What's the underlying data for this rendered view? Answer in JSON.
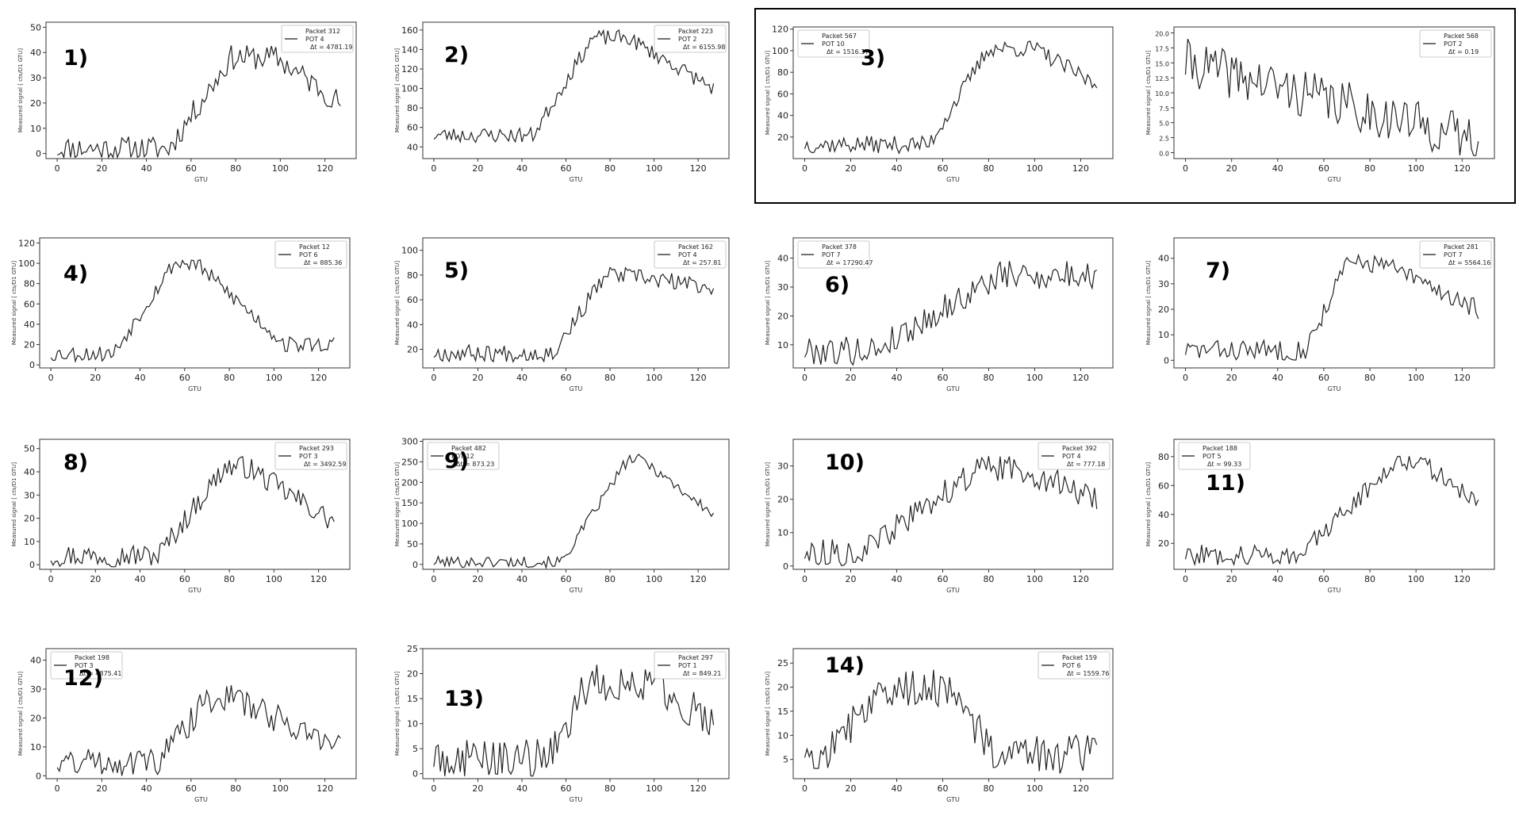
{
  "figure": {
    "y_axis_label": "Measured signal [ cts/D1 GTU]",
    "x_axis_label": "GTU",
    "line_color": "#222222",
    "frame_color": "#333333",
    "highlight_box_color": "#000000"
  },
  "chart_data": [
    {
      "panel": "1)",
      "type": "line",
      "legend": [
        "Packet 312",
        "POT 4",
        "Δt = 4781.19"
      ],
      "xlabel": "GTU",
      "ylabel": "Measured signal [ cts/D1 GTU]",
      "xlim": [
        -5,
        134
      ],
      "ylim": [
        -2,
        52
      ],
      "xticks": [
        0,
        20,
        40,
        60,
        80,
        100,
        120
      ],
      "yticks": [
        0,
        10,
        20,
        30,
        40,
        50
      ],
      "shape": {
        "base": 2,
        "peak": 38,
        "rise_start": 50,
        "rise_end": 78,
        "fall_start": 98,
        "fall_end": 127,
        "end": 20,
        "noise": 5,
        "seed": 11
      }
    },
    {
      "panel": "2)",
      "type": "line",
      "legend": [
        "Packet 223",
        "POT 2",
        "Δt = 6155.98"
      ],
      "xlabel": "GTU",
      "ylabel": "Measured signal [ cts/D1 GTU]",
      "xlim": [
        -5,
        134
      ],
      "ylim": [
        28,
        168
      ],
      "xticks": [
        0,
        20,
        40,
        60,
        80,
        100,
        120
      ],
      "yticks": [
        40,
        60,
        80,
        100,
        120,
        140,
        160
      ],
      "shape": {
        "base": 52,
        "peak": 152,
        "rise_start": 45,
        "rise_end": 72,
        "fall_start": 88,
        "fall_end": 127,
        "end": 100,
        "noise": 8,
        "seed": 23
      }
    },
    {
      "panel": "3)",
      "type": "line",
      "legend": [
        "Packet 567",
        "POT 10",
        "Δt = 1516.37"
      ],
      "xlabel": "GTU",
      "ylabel": "Measured signal [ cts/D1 GTU]",
      "xlim": [
        -5,
        134
      ],
      "ylim": [
        0,
        122
      ],
      "xticks": [
        0,
        20,
        40,
        60,
        80,
        100,
        120
      ],
      "yticks": [
        20,
        40,
        60,
        80,
        100,
        120
      ],
      "shape": {
        "base": 13,
        "peak": 102,
        "rise_start": 54,
        "rise_end": 80,
        "fall_start": 100,
        "fall_end": 127,
        "end": 68,
        "noise": 8,
        "seed": 37
      }
    },
    {
      "panel": "",
      "type": "line",
      "legend": [
        "Packet 568",
        "POT 2",
        "Δt = 0.19"
      ],
      "xlabel": "GTU",
      "ylabel": "Measured signal [ cts/D1 GTU]",
      "xlim": [
        -5,
        134
      ],
      "ylim": [
        -1,
        21
      ],
      "xticks": [
        0,
        20,
        40,
        60,
        80,
        100,
        120
      ],
      "yticks": [
        0.0,
        2.5,
        5.0,
        7.5,
        10.0,
        12.5,
        15.0,
        17.5,
        20.0
      ],
      "shape": {
        "base": 15,
        "peak": 15,
        "rise_start": 0,
        "rise_end": 1,
        "fall_start": 1,
        "fall_end": 127,
        "end": 2,
        "noise": 4,
        "seed": 41
      }
    },
    {
      "panel": "4)",
      "type": "line",
      "legend": [
        "Packet 12",
        "POT 6",
        "Δt = 885.36"
      ],
      "xlabel": "GTU",
      "ylabel": "Measured signal [ cts/D1 GTU]",
      "xlim": [
        -5,
        134
      ],
      "ylim": [
        -3,
        125
      ],
      "xticks": [
        0,
        20,
        40,
        60,
        80,
        100,
        120
      ],
      "yticks": [
        0,
        20,
        40,
        60,
        80,
        100,
        120
      ],
      "shape": {
        "base": 11,
        "peak": 100,
        "rise_start": 28,
        "rise_end": 55,
        "fall_start": 65,
        "fall_end": 105,
        "end": 20,
        "noise": 8,
        "seed": 53
      }
    },
    {
      "panel": "5)",
      "type": "line",
      "legend": [
        "Packet 162",
        "POT 4",
        "Δt = 257.81"
      ],
      "xlabel": "GTU",
      "ylabel": "Measured signal [ cts/D1 GTU]",
      "xlim": [
        -5,
        134
      ],
      "ylim": [
        5,
        110
      ],
      "xticks": [
        0,
        20,
        40,
        60,
        80,
        100,
        120
      ],
      "yticks": [
        20,
        40,
        60,
        80,
        100
      ],
      "shape": {
        "base": 17,
        "peak": 80,
        "rise_start": 54,
        "rise_end": 78,
        "fall_start": 85,
        "fall_end": 127,
        "end": 70,
        "noise": 7,
        "seed": 67
      }
    },
    {
      "panel": "6)",
      "type": "line",
      "legend": [
        "Packet 378",
        "POT 7",
        "Δt = 17290.47"
      ],
      "xlabel": "GTU",
      "ylabel": "Measured signal [ cts/D1 GTU]",
      "xlim": [
        -5,
        134
      ],
      "ylim": [
        2,
        47
      ],
      "xticks": [
        0,
        20,
        40,
        60,
        80,
        100,
        120
      ],
      "yticks": [
        10,
        20,
        30,
        40
      ],
      "shape": {
        "base": 8,
        "peak": 34,
        "rise_start": 30,
        "rise_end": 85,
        "fall_start": 125,
        "fall_end": 127,
        "end": 32,
        "noise": 5,
        "seed": 79
      }
    },
    {
      "panel": "7)",
      "type": "line",
      "legend": [
        "Packet 281",
        "POT 7",
        "Δt = 5564.16"
      ],
      "xlabel": "GTU",
      "ylabel": "Measured signal [ cts/D1 GTU]",
      "xlim": [
        -5,
        134
      ],
      "ylim": [
        -3,
        48
      ],
      "xticks": [
        0,
        20,
        40,
        60,
        80,
        100,
        120
      ],
      "yticks": [
        0,
        10,
        20,
        30,
        40
      ],
      "shape": {
        "base": 4,
        "peak": 38,
        "rise_start": 52,
        "rise_end": 70,
        "fall_start": 85,
        "fall_end": 127,
        "end": 20,
        "noise": 4,
        "seed": 83
      }
    },
    {
      "panel": "8)",
      "type": "line",
      "legend": [
        "Packet 293",
        "POT 3",
        "Δt = 3492.59"
      ],
      "xlabel": "GTU",
      "ylabel": "Measured signal [ cts/D1 GTU]",
      "xlim": [
        -5,
        134
      ],
      "ylim": [
        -2,
        54
      ],
      "xticks": [
        0,
        20,
        40,
        60,
        80,
        100,
        120
      ],
      "yticks": [
        0,
        10,
        20,
        30,
        40,
        50
      ],
      "shape": {
        "base": 4,
        "peak": 42,
        "rise_start": 48,
        "rise_end": 78,
        "fall_start": 88,
        "fall_end": 127,
        "end": 18,
        "noise": 5,
        "seed": 97
      }
    },
    {
      "panel": "9)",
      "type": "line",
      "legend": [
        "Packet 482",
        "POT 12",
        "Δt = 873.23"
      ],
      "xlabel": "GTU",
      "ylabel": "Measured signal [ cts/D1 GTU]",
      "xlim": [
        -5,
        134
      ],
      "ylim": [
        -12,
        305
      ],
      "xticks": [
        0,
        20,
        40,
        60,
        80,
        100,
        120
      ],
      "yticks": [
        0,
        50,
        100,
        150,
        200,
        250,
        300
      ],
      "shape": {
        "base": 6,
        "peak": 255,
        "rise_start": 58,
        "rise_end": 88,
        "fall_start": 95,
        "fall_end": 127,
        "end": 120,
        "noise": 14,
        "seed": 101
      }
    },
    {
      "panel": "10)",
      "type": "line",
      "legend": [
        "Packet 392",
        "POT 4",
        "Δt = 777.18"
      ],
      "xlabel": "GTU",
      "ylabel": "Measured signal [ cts/D1 GTU]",
      "xlim": [
        -5,
        134
      ],
      "ylim": [
        -1,
        38
      ],
      "xticks": [
        0,
        20,
        40,
        60,
        80,
        100,
        120
      ],
      "yticks": [
        0,
        10,
        20,
        30
      ],
      "shape": {
        "base": 4,
        "peak": 29,
        "rise_start": 25,
        "rise_end": 75,
        "fall_start": 95,
        "fall_end": 127,
        "end": 20,
        "noise": 4,
        "seed": 113
      }
    },
    {
      "panel": "11)",
      "type": "line",
      "legend": [
        "Packet 188",
        "POT 5",
        "Δt = 99.33"
      ],
      "xlabel": "GTU",
      "ylabel": "Measured signal [ cts/D1 GTU]",
      "xlim": [
        -5,
        134
      ],
      "ylim": [
        2,
        92
      ],
      "xticks": [
        0,
        20,
        40,
        60,
        80,
        100,
        120
      ],
      "yticks": [
        20,
        40,
        60,
        80
      ],
      "shape": {
        "base": 12,
        "peak": 78,
        "rise_start": 50,
        "rise_end": 92,
        "fall_start": 100,
        "fall_end": 127,
        "end": 48,
        "noise": 7,
        "seed": 127
      }
    },
    {
      "panel": "12)",
      "type": "line",
      "legend": [
        "Packet 198",
        "POT 3",
        "Δt = 4875.41"
      ],
      "xlabel": "GTU",
      "ylabel": "Measured signal [ cts/D1 GTU]",
      "xlim": [
        -5,
        134
      ],
      "ylim": [
        -1,
        44
      ],
      "xticks": [
        0,
        20,
        40,
        60,
        80,
        100,
        120
      ],
      "yticks": [
        0,
        10,
        20,
        30,
        40
      ],
      "shape": {
        "base": 5,
        "peak": 27,
        "rise_start": 45,
        "rise_end": 68,
        "fall_start": 78,
        "fall_end": 127,
        "end": 10,
        "noise": 5,
        "seed": 131
      }
    },
    {
      "panel": "13)",
      "type": "line",
      "legend": [
        "Packet 297",
        "POT 1",
        "Δt = 849.21"
      ],
      "xlabel": "GTU",
      "ylabel": "Measured signal [ cts/D1 GTU]",
      "xlim": [
        -5,
        134
      ],
      "ylim": [
        -1,
        25
      ],
      "xticks": [
        0,
        20,
        40,
        60,
        80,
        100,
        120
      ],
      "yticks": [
        0,
        5,
        10,
        15,
        20,
        25
      ],
      "shape": {
        "base": 3,
        "peak": 18,
        "rise_start": 52,
        "rise_end": 70,
        "fall_start": 100,
        "fall_end": 127,
        "end": 10,
        "noise": 4,
        "seed": 149
      }
    },
    {
      "panel": "14)",
      "type": "line",
      "legend": [
        "Packet 159",
        "POT 6",
        "Δt = 1559.76"
      ],
      "xlabel": "GTU",
      "ylabel": "Measured signal [ cts/D1 GTU]",
      "xlim": [
        -5,
        134
      ],
      "ylim": [
        1,
        28
      ],
      "xticks": [
        0,
        20,
        40,
        60,
        80,
        100,
        120
      ],
      "yticks": [
        5,
        10,
        15,
        20,
        25
      ],
      "shape": {
        "base": 7,
        "peak": 20,
        "rise_start": 12,
        "rise_end": 32,
        "fall_start": 62,
        "fall_end": 82,
        "end": 6,
        "noise": 4,
        "seed": 157
      }
    }
  ]
}
